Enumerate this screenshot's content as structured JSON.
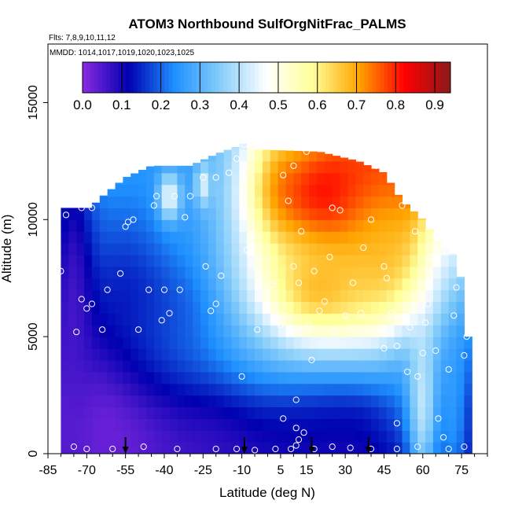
{
  "chart_data": {
    "type": "heatmap",
    "title": "ATOM3 Northbound SulfOrgNitFrac_PALMS",
    "flights_note": "Flts: 7,8,9,10,11,12",
    "dates_note": "MMDD: 1014,1017,1019,1020,1023,1025",
    "xlabel": "Latitude (deg N)",
    "ylabel": "Altitude (m)",
    "xlim": [
      -85,
      85
    ],
    "ylim": [
      0,
      17500
    ],
    "x_ticks": [
      -85,
      -70,
      -55,
      -40,
      -25,
      -10,
      5,
      15,
      30,
      45,
      60,
      75
    ],
    "x_tick_labels": [
      "-85",
      "-70",
      "-55",
      "-40",
      "-25",
      "-10",
      "5",
      "15",
      "30",
      "45",
      "60",
      "75"
    ],
    "y_ticks": [
      0,
      5000,
      10000,
      15000
    ],
    "y_tick_labels": [
      "0",
      "5000",
      "10000",
      "15000"
    ],
    "colorbar": {
      "min": 0,
      "max": 0.94,
      "ticks": [
        0.0,
        0.1,
        0.2,
        0.3,
        0.4,
        0.5,
        0.6,
        0.7,
        0.8,
        0.9
      ],
      "tick_labels": [
        "0.0",
        "0.1",
        "0.2",
        "0.3",
        "0.4",
        "0.5",
        "0.6",
        "0.7",
        "0.8",
        "0.9"
      ],
      "colors": [
        "#8a2be2",
        "#0000b0",
        "#1e90ff",
        "#87cefa",
        "#ffffff",
        "#ffff99",
        "#ffa500",
        "#ff0000",
        "#8b1a1a"
      ]
    },
    "field": {
      "lat_range": [
        -80,
        77
      ],
      "lat_step": 3,
      "alt_step": 500,
      "top_profile": [
        {
          "lat": -80,
          "alt": 10500
        },
        {
          "lat": -68,
          "alt": 10500
        },
        {
          "lat": -66,
          "alt": 10800
        },
        {
          "lat": -55,
          "alt": 11800
        },
        {
          "lat": -45,
          "alt": 12300
        },
        {
          "lat": -30,
          "alt": 12300
        },
        {
          "lat": -20,
          "alt": 12800
        },
        {
          "lat": -10,
          "alt": 13200
        },
        {
          "lat": -8,
          "alt": 13400
        },
        {
          "lat": -5,
          "alt": 13000
        },
        {
          "lat": 20,
          "alt": 12900
        },
        {
          "lat": 35,
          "alt": 12500
        },
        {
          "lat": 45,
          "alt": 12000
        },
        {
          "lat": 52,
          "alt": 10800
        },
        {
          "lat": 60,
          "alt": 10000
        },
        {
          "lat": 66,
          "alt": 9000
        },
        {
          "lat": 72,
          "alt": 8500
        },
        {
          "lat": 76,
          "alt": 7000
        },
        {
          "lat": 77,
          "alt": 5000
        }
      ],
      "features": [
        {
          "lat": -62,
          "alt": 1500,
          "value": 0.02,
          "sx": 22,
          "sy": 2500,
          "w": 1.0
        },
        {
          "lat": -75,
          "alt": 6000,
          "value": 0.05,
          "sx": 6,
          "sy": 5500,
          "w": 1.0
        },
        {
          "lat": -50,
          "alt": 7500,
          "value": 0.1,
          "sx": 12,
          "sy": 2500,
          "w": 0.8
        },
        {
          "lat": -20,
          "alt": 1500,
          "value": 0.06,
          "sx": 12,
          "sy": 2000,
          "w": 0.8
        },
        {
          "lat": 20,
          "alt": 1500,
          "value": 0.12,
          "sx": 20,
          "sy": 2000,
          "w": 0.7
        },
        {
          "lat": -35,
          "alt": 4500,
          "value": 0.15,
          "sx": 15,
          "sy": 2000,
          "w": 0.6
        },
        {
          "lat": -30,
          "alt": 10500,
          "value": 0.25,
          "sx": 20,
          "sy": 2500,
          "w": 0.8
        },
        {
          "lat": -5,
          "alt": 8500,
          "value": 0.32,
          "sx": 12,
          "sy": 3500,
          "w": 0.6
        },
        {
          "lat": 5,
          "alt": 4500,
          "value": 0.28,
          "sx": 30,
          "sy": 1500,
          "w": 0.7
        },
        {
          "lat": 55,
          "alt": 3000,
          "value": 0.22,
          "sx": 10,
          "sy": 2500,
          "w": 0.8
        },
        {
          "lat": 72,
          "alt": 2000,
          "value": 0.28,
          "sx": 5,
          "sy": 3000,
          "w": 0.8
        },
        {
          "lat": 64,
          "alt": 8000,
          "value": 0.35,
          "sx": 6,
          "sy": 2000,
          "w": 0.6
        },
        {
          "lat": 5,
          "alt": 11500,
          "value": 0.68,
          "sx": 8,
          "sy": 1800,
          "w": 0.7
        },
        {
          "lat": 25,
          "alt": 11000,
          "value": 0.83,
          "sx": 20,
          "sy": 2000,
          "w": 1.0
        },
        {
          "lat": 20,
          "alt": 7000,
          "value": 0.7,
          "sx": 18,
          "sy": 1800,
          "w": 0.9
        },
        {
          "lat": 45,
          "alt": 8500,
          "value": 0.68,
          "sx": 12,
          "sy": 2500,
          "w": 0.8
        },
        {
          "lat": 60,
          "alt": 1800,
          "value": 0.62,
          "sx": 4,
          "sy": 2500,
          "w": 0.5
        },
        {
          "lat": -38,
          "alt": 11000,
          "value": 0.6,
          "sx": 3,
          "sy": 700,
          "w": 0.6
        },
        {
          "lat": -25,
          "alt": 11500,
          "value": 0.58,
          "sx": 2,
          "sy": 600,
          "w": 0.5
        }
      ]
    },
    "sample_points": [
      [
        -80,
        7800
      ],
      [
        -78,
        10200
      ],
      [
        -74,
        5200
      ],
      [
        -72,
        6600
      ],
      [
        -70,
        6200
      ],
      [
        -68,
        6400
      ],
      [
        -72,
        10500
      ],
      [
        -68,
        10500
      ],
      [
        -75,
        300
      ],
      [
        -70,
        200
      ],
      [
        -62,
        7000
      ],
      [
        -64,
        5300
      ],
      [
        -60,
        200
      ],
      [
        -57,
        7700
      ],
      [
        -55,
        9700
      ],
      [
        -54,
        9900
      ],
      [
        -52,
        10000
      ],
      [
        -50,
        5300
      ],
      [
        -46,
        7000
      ],
      [
        -44,
        10600
      ],
      [
        -43,
        11000
      ],
      [
        -40,
        7000
      ],
      [
        -41,
        5700
      ],
      [
        -38,
        6000
      ],
      [
        -36,
        11000
      ],
      [
        -32,
        10100
      ],
      [
        -34,
        7000
      ],
      [
        -30,
        11000
      ],
      [
        -25,
        11800
      ],
      [
        -24,
        8000
      ],
      [
        -22,
        6100
      ],
      [
        -20,
        6400
      ],
      [
        -18,
        7600
      ],
      [
        -20,
        11800
      ],
      [
        -15,
        12000
      ],
      [
        -12,
        12600
      ],
      [
        -9,
        13200
      ],
      [
        -10,
        3300
      ],
      [
        -8,
        8700
      ],
      [
        -6,
        8000
      ],
      [
        -4,
        5300
      ],
      [
        0,
        7000
      ],
      [
        2,
        7200
      ],
      [
        5,
        5500
      ],
      [
        6,
        11900
      ],
      [
        8,
        10800
      ],
      [
        10,
        12300
      ],
      [
        10,
        8000
      ],
      [
        12,
        7300
      ],
      [
        13,
        9500
      ],
      [
        15,
        12900
      ],
      [
        16,
        5500
      ],
      [
        17,
        4000
      ],
      [
        18,
        7800
      ],
      [
        20,
        6100
      ],
      [
        22,
        6500
      ],
      [
        24,
        8400
      ],
      [
        25,
        10500
      ],
      [
        26,
        5200
      ],
      [
        28,
        10400
      ],
      [
        30,
        5900
      ],
      [
        33,
        7300
      ],
      [
        36,
        6000
      ],
      [
        37,
        8800
      ],
      [
        40,
        10000
      ],
      [
        42,
        12300
      ],
      [
        45,
        8000
      ],
      [
        45,
        4500
      ],
      [
        46,
        7500
      ],
      [
        48,
        6000
      ],
      [
        50,
        4600
      ],
      [
        50,
        1300
      ],
      [
        52,
        10600
      ],
      [
        54,
        3500
      ],
      [
        55,
        5400
      ],
      [
        56,
        6100
      ],
      [
        57,
        9500
      ],
      [
        58,
        3300
      ],
      [
        60,
        4300
      ],
      [
        61,
        5600
      ],
      [
        62,
        6400
      ],
      [
        63,
        8400
      ],
      [
        64,
        11000
      ],
      [
        65,
        4400
      ],
      [
        66,
        1500
      ],
      [
        68,
        700
      ],
      [
        70,
        3600
      ],
      [
        72,
        5900
      ],
      [
        73,
        7100
      ],
      [
        75,
        9000
      ],
      [
        76,
        4200
      ],
      [
        77,
        5000
      ],
      [
        -48,
        300
      ],
      [
        -35,
        200
      ],
      [
        -20,
        200
      ],
      [
        -12,
        200
      ],
      [
        -5,
        150
      ],
      [
        3,
        200
      ],
      [
        9,
        200
      ],
      [
        11,
        350
      ],
      [
        12,
        600
      ],
      [
        14,
        900
      ],
      [
        18,
        200
      ],
      [
        25,
        300
      ],
      [
        32,
        250
      ],
      [
        40,
        200
      ],
      [
        50,
        200
      ],
      [
        58,
        300
      ],
      [
        70,
        200
      ],
      [
        76,
        300
      ],
      [
        11,
        2300
      ],
      [
        11,
        1100
      ],
      [
        6,
        1500
      ]
    ],
    "arrow_latitudes": [
      -55,
      -9,
      17,
      39
    ]
  }
}
